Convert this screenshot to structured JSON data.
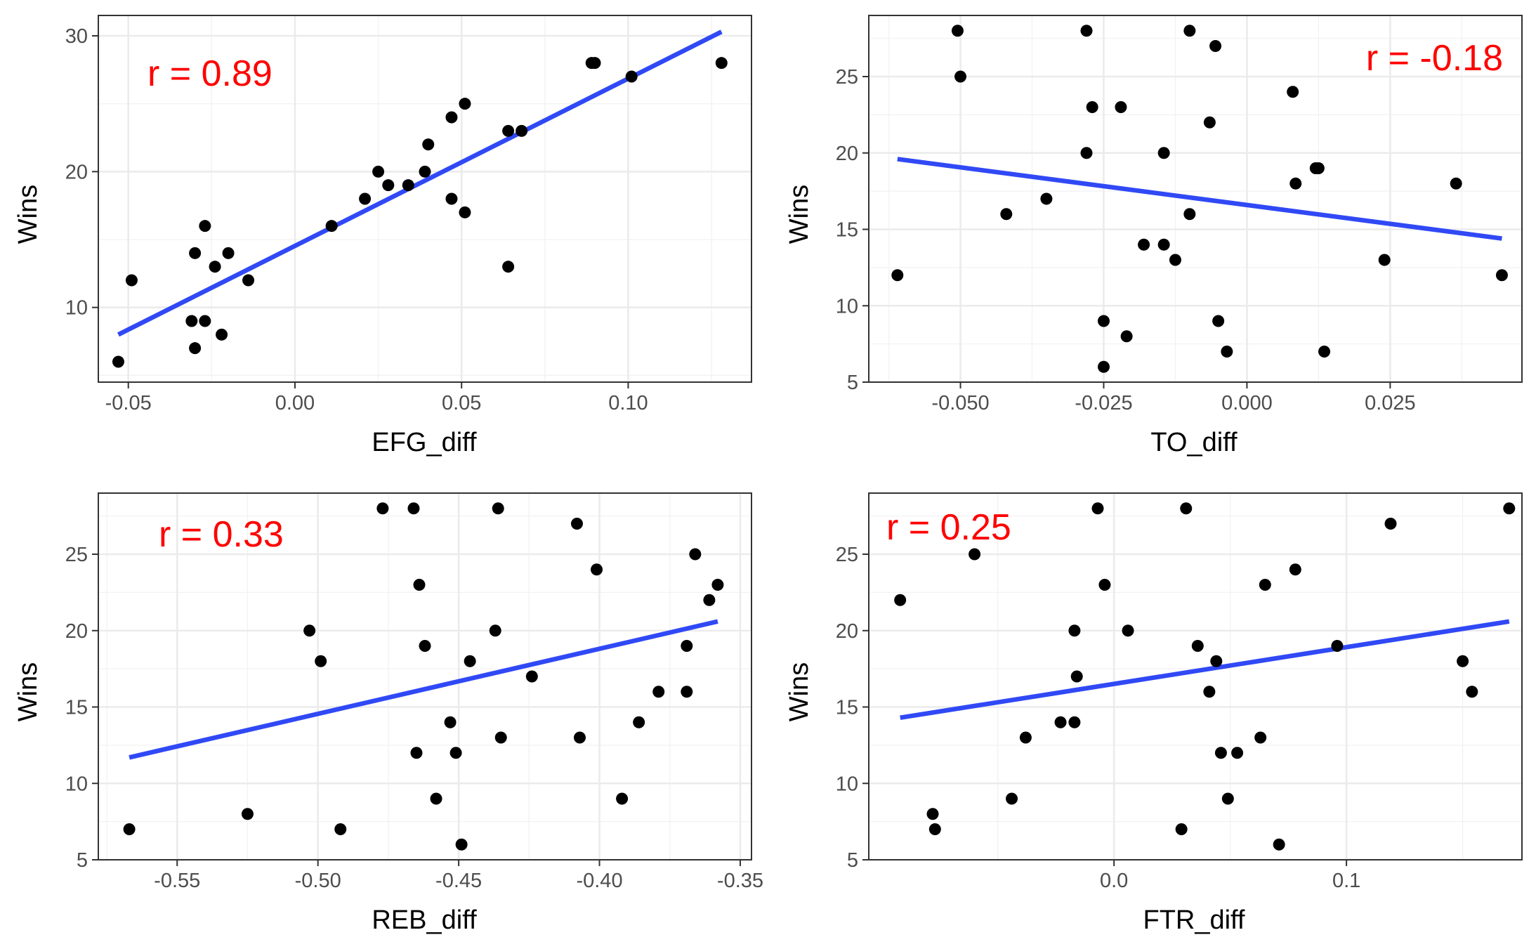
{
  "figure": {
    "panels": [
      {
        "xlabel": "EFG_diff",
        "ylabel": "Wins",
        "xlim": [
          -0.059,
          0.137
        ],
        "ylim": [
          4.5,
          31.5
        ],
        "annotation": "r = 0.89",
        "annotation_position": "top-left",
        "annotation_color": "#ff0000"
      },
      {
        "xlabel": "TO_diff",
        "ylabel": "Wins",
        "xlim": [
          -0.066,
          0.048
        ],
        "ylim": [
          5,
          29
        ],
        "annotation": "r = -0.18",
        "annotation_position": "top-right",
        "annotation_color": "#ff0000"
      },
      {
        "xlabel": "REB_diff",
        "ylabel": "Wins",
        "xlim": [
          -0.578,
          -0.346
        ],
        "ylim": [
          5,
          29
        ],
        "annotation": "r = 0.33",
        "annotation_position": "top-left",
        "annotation_color": "#ff0000"
      },
      {
        "xlabel": "FTR_diff",
        "ylabel": "Wins",
        "xlim": [
          -0.1055,
          0.1755
        ],
        "ylim": [
          5,
          29
        ],
        "annotation": "r = 0.25",
        "annotation_position": "top-left",
        "annotation_color": "#ff0000"
      }
    ]
  },
  "chart_data": [
    {
      "type": "scatter",
      "xlabel": "EFG_diff",
      "ylabel": "Wins",
      "xticks": [
        -0.05,
        0.0,
        0.05,
        0.1
      ],
      "xtick_labels": [
        "-0.05",
        "0.00",
        "0.05",
        "0.10"
      ],
      "yticks": [
        10,
        20,
        30
      ],
      "ytick_labels": [
        "10",
        "20",
        "30"
      ],
      "xlim": [
        -0.059,
        0.137
      ],
      "ylim": [
        4.5,
        31.5
      ],
      "grid": true,
      "annotation": "r = 0.89",
      "points": [
        [
          -0.053,
          6
        ],
        [
          -0.049,
          12
        ],
        [
          -0.031,
          9
        ],
        [
          -0.03,
          7
        ],
        [
          -0.03,
          14
        ],
        [
          -0.027,
          16
        ],
        [
          -0.027,
          9
        ],
        [
          -0.024,
          13
        ],
        [
          -0.022,
          8
        ],
        [
          -0.02,
          14
        ],
        [
          -0.014,
          12
        ],
        [
          0.011,
          16
        ],
        [
          0.021,
          18
        ],
        [
          0.025,
          20
        ],
        [
          0.028,
          19
        ],
        [
          0.034,
          19
        ],
        [
          0.039,
          20
        ],
        [
          0.04,
          22
        ],
        [
          0.047,
          24
        ],
        [
          0.047,
          18
        ],
        [
          0.051,
          25
        ],
        [
          0.051,
          17
        ],
        [
          0.064,
          23
        ],
        [
          0.064,
          13
        ],
        [
          0.068,
          23
        ],
        [
          0.089,
          28
        ],
        [
          0.09,
          28
        ],
        [
          0.101,
          27
        ],
        [
          0.128,
          28
        ]
      ],
      "fit_line": [
        [
          -0.053,
          8.0
        ],
        [
          0.128,
          30.3
        ]
      ],
      "colors": {
        "points": "#000000",
        "line": "#3049f5",
        "annotation": "#ff0000"
      }
    },
    {
      "type": "scatter",
      "xlabel": "TO_diff",
      "ylabel": "Wins",
      "xticks": [
        -0.05,
        -0.025,
        0.0,
        0.025
      ],
      "xtick_labels": [
        "-0.050",
        "-0.025",
        "0.000",
        "0.025"
      ],
      "yticks": [
        5,
        10,
        15,
        20,
        25
      ],
      "ytick_labels": [
        "5",
        "10",
        "15",
        "20",
        "25"
      ],
      "xlim": [
        -0.066,
        0.048
      ],
      "ylim": [
        5,
        29
      ],
      "grid": true,
      "annotation": "r = -0.18",
      "points": [
        [
          -0.061,
          12
        ],
        [
          -0.0505,
          28
        ],
        [
          -0.05,
          25
        ],
        [
          -0.042,
          16
        ],
        [
          -0.035,
          17
        ],
        [
          -0.028,
          28
        ],
        [
          -0.028,
          20
        ],
        [
          -0.027,
          23
        ],
        [
          -0.025,
          9
        ],
        [
          -0.025,
          6
        ],
        [
          -0.022,
          23
        ],
        [
          -0.021,
          8
        ],
        [
          -0.018,
          14
        ],
        [
          -0.0145,
          20
        ],
        [
          -0.0145,
          14
        ],
        [
          -0.0125,
          13
        ],
        [
          -0.01,
          28
        ],
        [
          -0.01,
          16
        ],
        [
          -0.0065,
          22
        ],
        [
          -0.0055,
          27
        ],
        [
          -0.005,
          9
        ],
        [
          -0.0035,
          7
        ],
        [
          0.008,
          24
        ],
        [
          0.0085,
          18
        ],
        [
          0.012,
          19
        ],
        [
          0.0125,
          19
        ],
        [
          0.0135,
          7
        ],
        [
          0.024,
          13
        ],
        [
          0.0365,
          18
        ],
        [
          0.0445,
          12
        ]
      ],
      "fit_line": [
        [
          -0.061,
          19.6
        ],
        [
          0.0445,
          14.4
        ]
      ],
      "colors": {
        "points": "#000000",
        "line": "#3049f5",
        "annotation": "#ff0000"
      }
    },
    {
      "type": "scatter",
      "xlabel": "REB_diff",
      "ylabel": "Wins",
      "xticks": [
        -0.55,
        -0.5,
        -0.45,
        -0.4,
        -0.35
      ],
      "xtick_labels": [
        "-0.55",
        "-0.50",
        "-0.45",
        "-0.40",
        "-0.35"
      ],
      "yticks": [
        5,
        10,
        15,
        20,
        25
      ],
      "ytick_labels": [
        "5",
        "10",
        "15",
        "20",
        "25"
      ],
      "xlim": [
        -0.578,
        -0.346
      ],
      "ylim": [
        5,
        29
      ],
      "grid": true,
      "annotation": "r = 0.33",
      "points": [
        [
          -0.567,
          7
        ],
        [
          -0.525,
          8
        ],
        [
          -0.503,
          20
        ],
        [
          -0.499,
          18
        ],
        [
          -0.492,
          7
        ],
        [
          -0.477,
          28
        ],
        [
          -0.466,
          28
        ],
        [
          -0.465,
          12
        ],
        [
          -0.464,
          23
        ],
        [
          -0.462,
          19
        ],
        [
          -0.458,
          9
        ],
        [
          -0.453,
          14
        ],
        [
          -0.451,
          12
        ],
        [
          -0.449,
          6
        ],
        [
          -0.446,
          18
        ],
        [
          -0.437,
          20
        ],
        [
          -0.436,
          28
        ],
        [
          -0.435,
          13
        ],
        [
          -0.424,
          17
        ],
        [
          -0.408,
          27
        ],
        [
          -0.407,
          13
        ],
        [
          -0.401,
          24
        ],
        [
          -0.392,
          9
        ],
        [
          -0.386,
          14
        ],
        [
          -0.379,
          16
        ],
        [
          -0.369,
          19
        ],
        [
          -0.369,
          16
        ],
        [
          -0.366,
          25
        ],
        [
          -0.361,
          22
        ],
        [
          -0.358,
          23
        ]
      ],
      "fit_line": [
        [
          -0.567,
          11.7
        ],
        [
          -0.358,
          20.6
        ]
      ],
      "colors": {
        "points": "#000000",
        "line": "#3049f5",
        "annotation": "#ff0000"
      }
    },
    {
      "type": "scatter",
      "xlabel": "FTR_diff",
      "ylabel": "Wins",
      "xticks": [
        0.0,
        0.1
      ],
      "xtick_labels": [
        "0.0",
        "0.1"
      ],
      "yticks": [
        5,
        10,
        15,
        20,
        25
      ],
      "ytick_labels": [
        "5",
        "10",
        "15",
        "20",
        "25"
      ],
      "xlim": [
        -0.1055,
        0.1755
      ],
      "ylim": [
        5,
        29
      ],
      "grid": true,
      "annotation": "r = 0.25",
      "points": [
        [
          -0.092,
          22
        ],
        [
          -0.078,
          8
        ],
        [
          -0.077,
          7
        ],
        [
          -0.06,
          25
        ],
        [
          -0.044,
          9
        ],
        [
          -0.038,
          13
        ],
        [
          -0.023,
          14
        ],
        [
          -0.017,
          14
        ],
        [
          -0.017,
          20
        ],
        [
          -0.016,
          17
        ],
        [
          -0.007,
          28
        ],
        [
          -0.004,
          23
        ],
        [
          0.006,
          20
        ],
        [
          0.029,
          7
        ],
        [
          0.031,
          28
        ],
        [
          0.036,
          19
        ],
        [
          0.041,
          16
        ],
        [
          0.044,
          18
        ],
        [
          0.046,
          12
        ],
        [
          0.049,
          9
        ],
        [
          0.053,
          12
        ],
        [
          0.063,
          13
        ],
        [
          0.065,
          23
        ],
        [
          0.071,
          6
        ],
        [
          0.078,
          24
        ],
        [
          0.096,
          19
        ],
        [
          0.119,
          27
        ],
        [
          0.15,
          18
        ],
        [
          0.154,
          16
        ],
        [
          0.17,
          28
        ]
      ],
      "fit_line": [
        [
          -0.092,
          14.3
        ],
        [
          0.17,
          20.6
        ]
      ],
      "colors": {
        "points": "#000000",
        "line": "#3049f5",
        "annotation": "#ff0000"
      }
    }
  ]
}
